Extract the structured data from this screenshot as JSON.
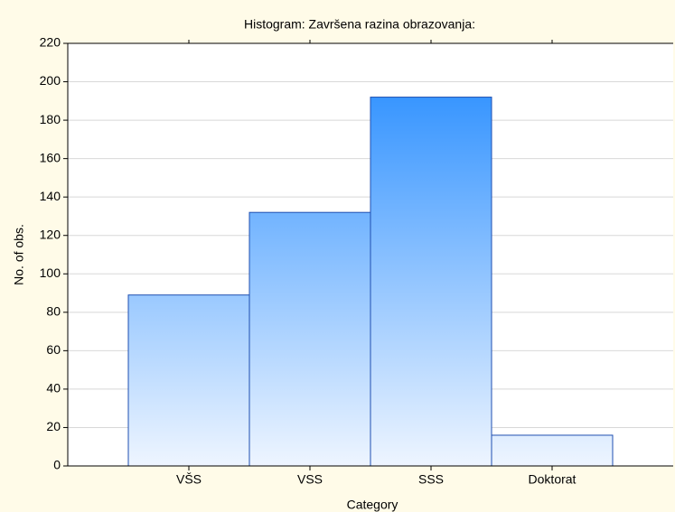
{
  "chart_data": {
    "type": "bar",
    "title": "Histogram: Završena razina obrazovanja:",
    "x_label": "Category",
    "y_label": "No. of obs.",
    "categories": [
      "VŠS",
      "VSS",
      "SSS",
      "Doktorat"
    ],
    "values": [
      89,
      132,
      192,
      16
    ],
    "color": "#1e88ff",
    "ylim": [
      0,
      220
    ],
    "yticks": [
      0,
      20,
      40,
      60,
      80,
      100,
      120,
      140,
      160,
      180,
      200,
      220
    ],
    "grid": true
  }
}
